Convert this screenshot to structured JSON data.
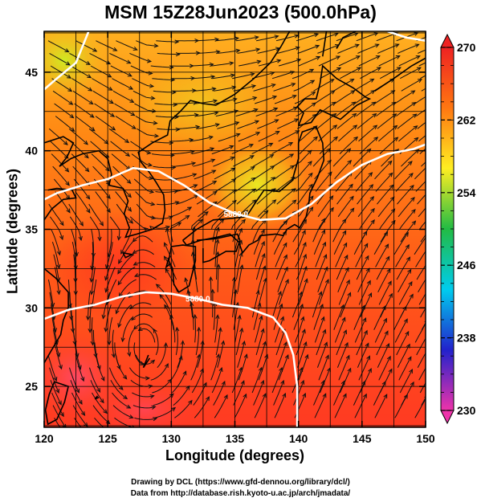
{
  "title": "MSM 15Z28Jun2023 (500.0hPa)",
  "xlabel": "Longitude (degrees)",
  "ylabel": "Latitude  (degrees)",
  "credits": {
    "line1": "Drawing by DCL (https://www.gfd-dennou.org/library/dcl/)",
    "line2": "Data from http://database.rish.kyoto-u.ac.jp/arch/jmadata/"
  },
  "chart_data": {
    "type": "heatmap",
    "variable": "temperature",
    "xlim": [
      120,
      150
    ],
    "ylim": [
      22.4,
      47.6
    ],
    "x_ticks": [
      "120",
      "125",
      "130",
      "135",
      "140",
      "145",
      "150"
    ],
    "y_ticks": [
      "25",
      "30",
      "35",
      "40",
      "45"
    ],
    "contours": [
      {
        "label": "5880.0",
        "points": [
          [
            120,
            36.9
          ],
          [
            121,
            37.3
          ],
          [
            123,
            37.8
          ],
          [
            125,
            38.2
          ],
          [
            127,
            38.9
          ],
          [
            129,
            38.7
          ],
          [
            131,
            37.8
          ],
          [
            133,
            36.7
          ],
          [
            135,
            36.0
          ],
          [
            137,
            35.6
          ],
          [
            139,
            35.7
          ],
          [
            141,
            36.6
          ],
          [
            143,
            38.0
          ],
          [
            145,
            39.1
          ],
          [
            147,
            39.8
          ],
          [
            149,
            40.1
          ],
          [
            150,
            40.4
          ]
        ]
      },
      {
        "label": "5880.0",
        "points": [
          [
            120,
            29.3
          ],
          [
            121,
            29.6
          ],
          [
            122,
            29.9
          ],
          [
            124,
            30.2
          ],
          [
            126,
            30.7
          ],
          [
            128,
            31.0
          ],
          [
            130,
            30.9
          ],
          [
            132,
            30.6
          ],
          [
            134,
            30.2
          ],
          [
            136,
            30.0
          ],
          [
            138,
            29.4
          ],
          [
            139,
            28.4
          ],
          [
            139.6,
            27.0
          ],
          [
            139.9,
            25.0
          ],
          [
            139.9,
            22.4
          ]
        ]
      },
      {
        "label": "",
        "points": [
          [
            120,
            43.9
          ],
          [
            121,
            44.6
          ],
          [
            122.5,
            45.6
          ],
          [
            123.5,
            47.6
          ]
        ]
      },
      {
        "label": "",
        "points": [
          [
            147,
            47.6
          ],
          [
            148.5,
            47.2
          ],
          [
            150,
            47.0
          ]
        ]
      }
    ],
    "colorbar": {
      "min": 230,
      "max": 270,
      "tick_labels": [
        "270",
        "262",
        "254",
        "246",
        "238",
        "230"
      ],
      "colors": [
        "#ee33aa",
        "#2222cc",
        "#00ccee",
        "#22bb44",
        "#ffee22",
        "#ff7711",
        "#ee2222"
      ]
    }
  }
}
